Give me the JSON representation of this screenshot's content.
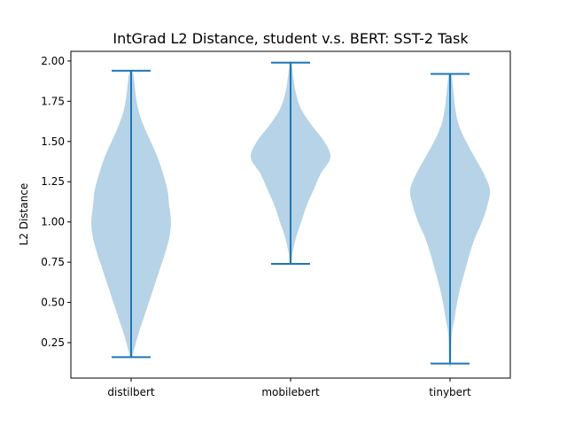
{
  "chart_data": {
    "type": "violin",
    "title": "IntGrad L2 Distance, student v.s. BERT: SST-2 Task",
    "xlabel": "",
    "ylabel": "L2 Distance",
    "ylim": [
      0.03,
      2.06
    ],
    "yticks": [
      0.25,
      0.5,
      0.75,
      1.0,
      1.25,
      1.5,
      1.75,
      2.0
    ],
    "ytick_labels": [
      "0.25",
      "0.50",
      "0.75",
      "1.00",
      "1.25",
      "1.50",
      "1.75",
      "2.00"
    ],
    "categories": [
      "distilbert",
      "mobilebert",
      "tinybert"
    ],
    "grid": false,
    "colors": {
      "body": "#b6d3e8",
      "line": "#1f77b4",
      "axis": "#000000"
    },
    "series": [
      {
        "min": 0.16,
        "max": 1.94,
        "profile": [
          [
            0.16,
            1
          ],
          [
            0.2,
            3
          ],
          [
            0.3,
            8
          ],
          [
            0.4,
            14
          ],
          [
            0.5,
            20
          ],
          [
            0.6,
            26
          ],
          [
            0.7,
            32
          ],
          [
            0.8,
            38
          ],
          [
            0.9,
            43
          ],
          [
            1.0,
            45
          ],
          [
            1.1,
            43
          ],
          [
            1.2,
            41
          ],
          [
            1.3,
            36
          ],
          [
            1.4,
            30
          ],
          [
            1.5,
            22
          ],
          [
            1.6,
            14
          ],
          [
            1.7,
            8
          ],
          [
            1.8,
            5
          ],
          [
            1.9,
            3
          ],
          [
            1.94,
            1
          ]
        ]
      },
      {
        "min": 0.74,
        "max": 1.99,
        "profile": [
          [
            0.74,
            1
          ],
          [
            0.8,
            2
          ],
          [
            0.9,
            6
          ],
          [
            1.0,
            12
          ],
          [
            1.1,
            18
          ],
          [
            1.2,
            26
          ],
          [
            1.3,
            34
          ],
          [
            1.4,
            45
          ],
          [
            1.5,
            38
          ],
          [
            1.6,
            24
          ],
          [
            1.7,
            12
          ],
          [
            1.8,
            6
          ],
          [
            1.9,
            3
          ],
          [
            1.99,
            1
          ]
        ]
      },
      {
        "min": 0.12,
        "max": 1.92,
        "profile": [
          [
            0.12,
            1
          ],
          [
            0.3,
            2
          ],
          [
            0.4,
            5
          ],
          [
            0.5,
            8
          ],
          [
            0.6,
            12
          ],
          [
            0.7,
            17
          ],
          [
            0.8,
            22
          ],
          [
            0.9,
            28
          ],
          [
            1.0,
            36
          ],
          [
            1.1,
            42
          ],
          [
            1.2,
            45
          ],
          [
            1.3,
            38
          ],
          [
            1.4,
            28
          ],
          [
            1.5,
            18
          ],
          [
            1.6,
            10
          ],
          [
            1.7,
            6
          ],
          [
            1.8,
            4
          ],
          [
            1.9,
            2
          ],
          [
            1.92,
            1
          ]
        ]
      }
    ]
  }
}
